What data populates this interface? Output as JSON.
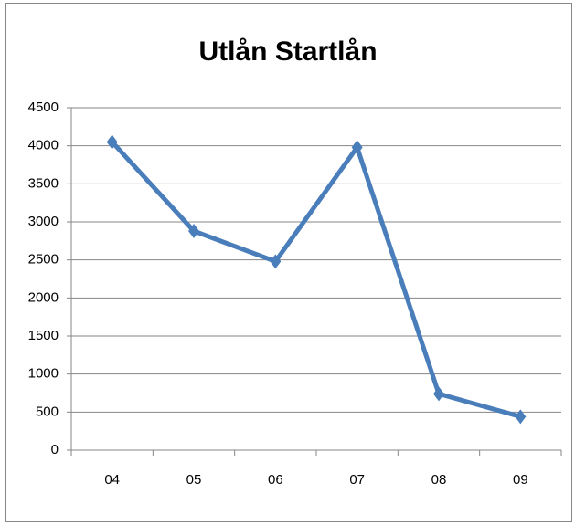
{
  "chart_data": {
    "type": "line",
    "title": "Utlån Startlån",
    "categories": [
      "04",
      "05",
      "06",
      "07",
      "08",
      "09"
    ],
    "values": [
      4050,
      2880,
      2480,
      3980,
      740,
      440
    ],
    "color": "#4a7ebb",
    "ylim": [
      0,
      4500
    ],
    "yticks": [
      0,
      500,
      1000,
      1500,
      2000,
      2500,
      3000,
      3500,
      4000,
      4500
    ],
    "grid": true
  }
}
